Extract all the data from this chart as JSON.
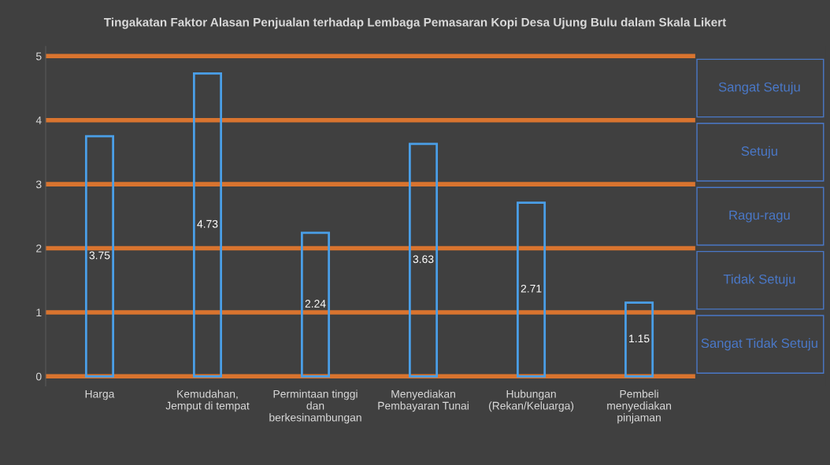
{
  "chart_data": {
    "type": "bar",
    "title": "Tingakatan Faktor Alasan Penjualan terhadap Lembaga Pemasaran Kopi Desa Ujung Bulu dalam Skala Likert",
    "categories": [
      "Harga",
      "Kemudahan,\nJemput di tempat",
      "Permintaan tinggi\ndan\nberkesinambungan",
      "Menyediakan\nPembayaran Tunai",
      "Hubungan\n(Rekan/Keluarga)",
      "Pembeli\nmenyediakan\npinjaman"
    ],
    "values": [
      3.75,
      4.73,
      2.24,
      3.63,
      2.71,
      1.15
    ],
    "color": "#4a9fe8",
    "data_labels": true,
    "ylim": [
      -0.15,
      5.15
    ],
    "yticks": [
      0,
      1,
      2,
      3,
      4,
      5
    ],
    "grid": false,
    "ref_lines": [
      {
        "axis": "y",
        "value": 0,
        "color": "#d9742f"
      },
      {
        "axis": "y",
        "value": 1,
        "color": "#d9742f"
      },
      {
        "axis": "y",
        "value": 2,
        "color": "#d9742f"
      },
      {
        "axis": "y",
        "value": 3,
        "color": "#d9742f"
      },
      {
        "axis": "y",
        "value": 4,
        "color": "#d9742f"
      },
      {
        "axis": "y",
        "value": 5,
        "color": "#d9742f"
      }
    ],
    "annotations": [
      "Sangat Setuju",
      "Setuju",
      "Ragu-ragu",
      "Tidak Setuju",
      "Sangat Tidak Setuju"
    ]
  }
}
